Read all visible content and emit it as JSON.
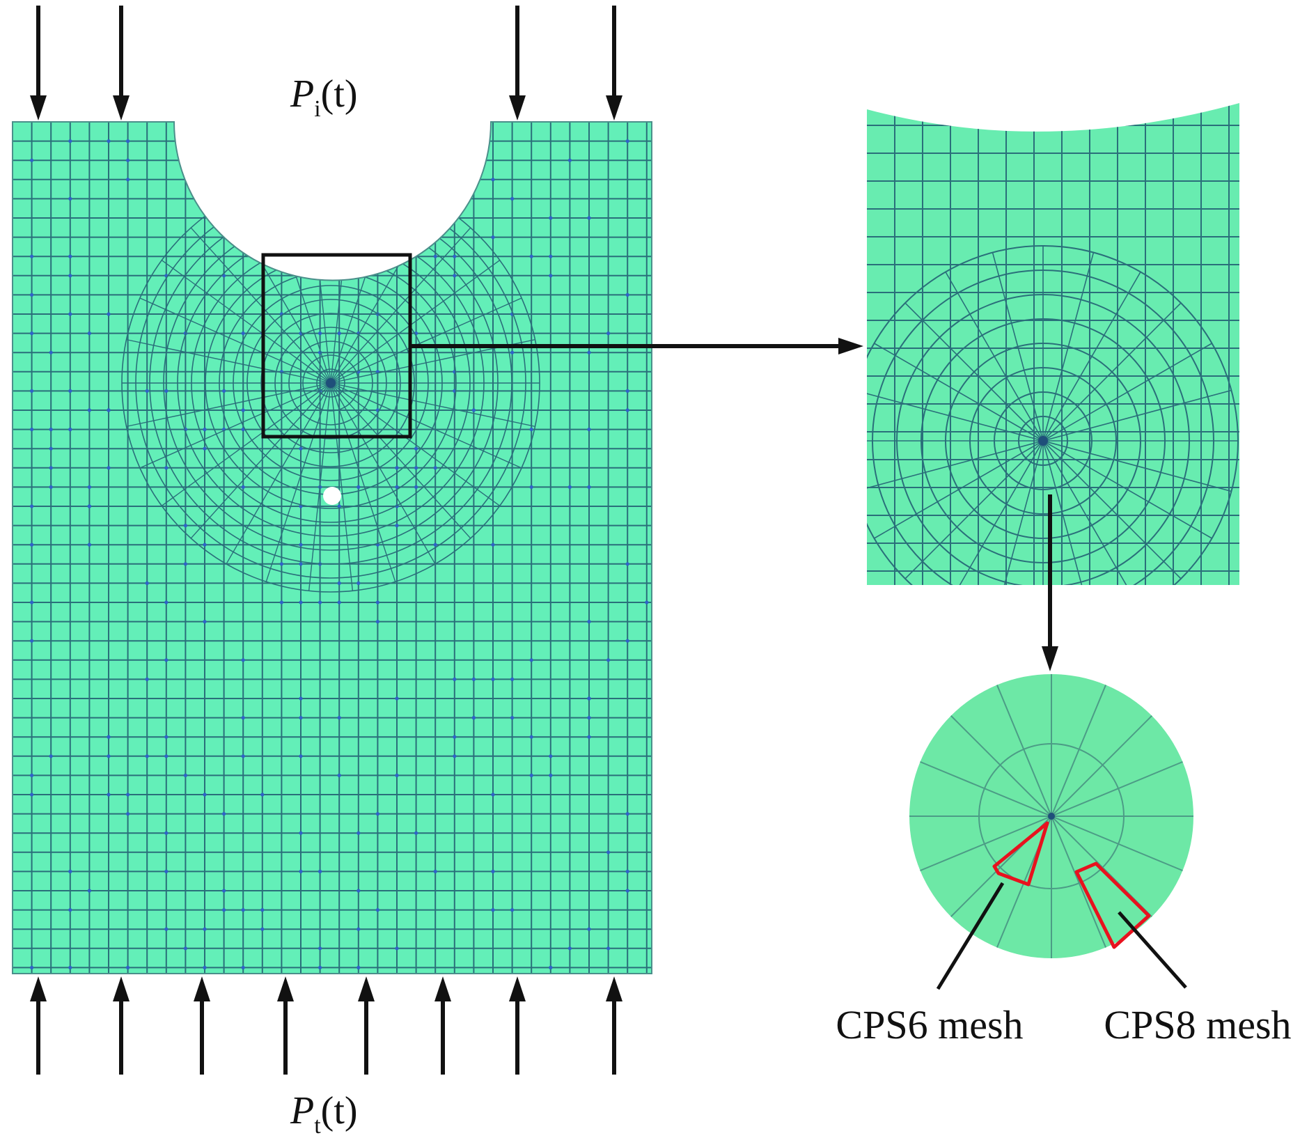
{
  "labels": {
    "top_load_symbol": "P",
    "top_load_sub": "i",
    "top_load_arg": "(t)",
    "bottom_load_symbol": "P",
    "bottom_load_sub": "t",
    "bottom_load_arg": "(t)",
    "cps6": "CPS6 mesh",
    "cps8": "CPS8 mesh"
  },
  "colors": {
    "mesh_fill": "#63efb8",
    "mesh_line": "#2a6f7a",
    "mesh_node": "#2f63c8",
    "zoom_fill": "#68ecb0",
    "circle_fill": "#6de8a6",
    "highlight": "#e8121e",
    "arrow": "#111111"
  }
}
